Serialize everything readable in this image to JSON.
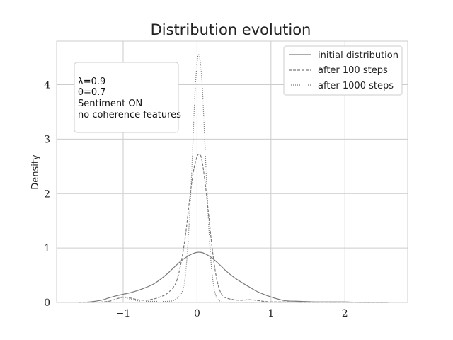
{
  "chart_data": {
    "type": "line",
    "title": "Distribution evolution",
    "xlabel": "",
    "ylabel": "Density",
    "xlim": [
      -1.9,
      2.85
    ],
    "ylim": [
      0,
      4.8
    ],
    "xticks": [
      -1,
      0,
      1,
      2
    ],
    "xtick_labels": [
      "−1",
      "0",
      "1",
      "2"
    ],
    "yticks": [
      0,
      1,
      2,
      3,
      4
    ],
    "ytick_labels": [
      "0",
      "1",
      "2",
      "3",
      "4"
    ],
    "grid": true,
    "legend_position": "top-right",
    "annotation": [
      "λ=0.9",
      "θ=0.7",
      "Sentiment ON",
      "no coherence features"
    ],
    "series": [
      {
        "name": "initial distribution",
        "style": "solid",
        "color": "#7a7a7a",
        "x": [
          -1.6,
          -1.45,
          -1.3,
          -1.2,
          -1.1,
          -1.0,
          -0.9,
          -0.8,
          -0.7,
          -0.6,
          -0.5,
          -0.4,
          -0.3,
          -0.2,
          -0.1,
          -0.05,
          0.0,
          0.05,
          0.1,
          0.2,
          0.3,
          0.4,
          0.5,
          0.6,
          0.7,
          0.8,
          0.9,
          1.0,
          1.1,
          1.2,
          1.4,
          1.6,
          1.8,
          2.0,
          2.2,
          2.4,
          2.6
        ],
        "y": [
          0.0,
          0.01,
          0.04,
          0.08,
          0.12,
          0.15,
          0.18,
          0.22,
          0.27,
          0.33,
          0.42,
          0.53,
          0.66,
          0.78,
          0.87,
          0.9,
          0.92,
          0.92,
          0.9,
          0.82,
          0.7,
          0.57,
          0.46,
          0.37,
          0.29,
          0.21,
          0.15,
          0.1,
          0.06,
          0.03,
          0.02,
          0.01,
          0.01,
          0.01,
          0.0,
          0.0,
          0.0
        ]
      },
      {
        "name": "after 100 steps",
        "style": "dashed",
        "color": "#7a7a7a",
        "x": [
          -1.6,
          -1.4,
          -1.2,
          -1.1,
          -1.0,
          -0.9,
          -0.8,
          -0.7,
          -0.6,
          -0.5,
          -0.4,
          -0.3,
          -0.25,
          -0.2,
          -0.15,
          -0.1,
          -0.05,
          0.0,
          0.03,
          0.06,
          0.1,
          0.15,
          0.2,
          0.25,
          0.3,
          0.35,
          0.4,
          0.5,
          0.6,
          0.7,
          0.8,
          0.9,
          1.0,
          1.2,
          1.4,
          1.6,
          1.8,
          2.0,
          2.2,
          2.4,
          2.6
        ],
        "y": [
          0.0,
          0.0,
          0.02,
          0.06,
          0.1,
          0.08,
          0.05,
          0.04,
          0.06,
          0.1,
          0.17,
          0.32,
          0.52,
          0.85,
          1.3,
          1.9,
          2.4,
          2.68,
          2.72,
          2.65,
          2.3,
          1.7,
          1.05,
          0.55,
          0.25,
          0.12,
          0.08,
          0.05,
          0.04,
          0.05,
          0.04,
          0.02,
          0.01,
          0.01,
          0.0,
          0.0,
          0.0,
          0.0,
          0.0,
          0.0,
          0.0
        ]
      },
      {
        "name": "after 1000 steps",
        "style": "dotted",
        "color": "#7a7a7a",
        "x": [
          -1.6,
          -1.4,
          -1.2,
          -1.1,
          -1.0,
          -0.9,
          -0.8,
          -0.7,
          -0.6,
          -0.5,
          -0.4,
          -0.3,
          -0.2,
          -0.15,
          -0.1,
          -0.06,
          -0.03,
          0.0,
          0.02,
          0.04,
          0.07,
          0.1,
          0.14,
          0.18,
          0.22,
          0.27,
          0.35,
          0.45,
          0.6,
          0.8,
          1.0,
          1.2,
          1.5,
          2.0,
          2.5
        ],
        "y": [
          0.0,
          0.0,
          0.02,
          0.06,
          0.09,
          0.06,
          0.03,
          0.02,
          0.02,
          0.02,
          0.02,
          0.05,
          0.2,
          0.6,
          1.6,
          2.8,
          3.8,
          4.4,
          4.55,
          4.45,
          4.0,
          3.1,
          1.9,
          0.9,
          0.35,
          0.08,
          0.01,
          0.0,
          0.0,
          0.0,
          0.0,
          0.0,
          0.0,
          0.0,
          0.0
        ]
      }
    ]
  }
}
